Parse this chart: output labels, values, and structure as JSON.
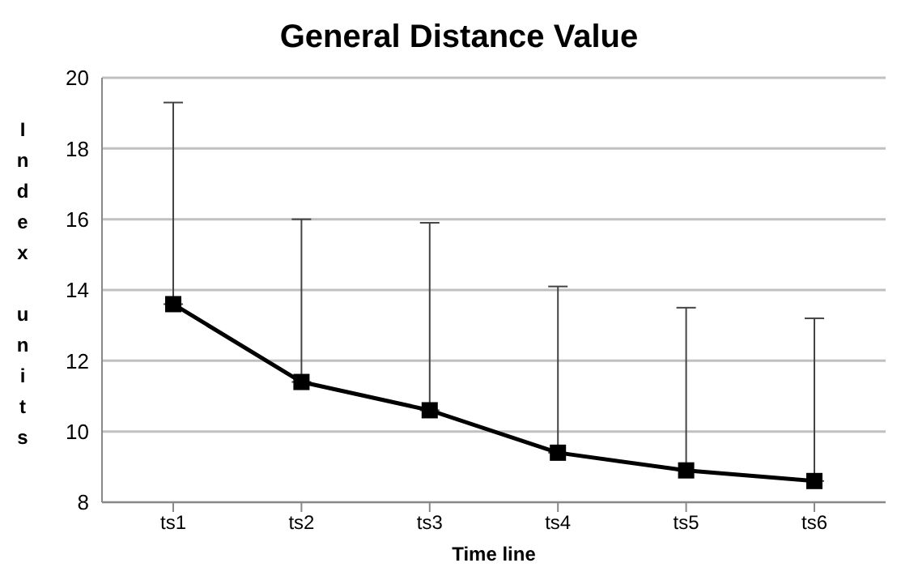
{
  "chart_data": {
    "type": "line",
    "title": "General Distance Value",
    "xlabel": "Time line",
    "ylabel": "Index units",
    "categories": [
      "ts1",
      "ts2",
      "ts3",
      "ts4",
      "ts5",
      "ts6"
    ],
    "series": [
      {
        "color": "#000000",
        "values": [
          13.6,
          11.4,
          10.6,
          9.4,
          8.9,
          8.6
        ],
        "errors": [
          [
            13.6,
            19.3
          ],
          [
            11.4,
            16.0
          ],
          [
            10.6,
            15.9
          ],
          [
            9.4,
            14.1
          ],
          [
            8.9,
            13.5
          ],
          [
            8.6,
            13.2
          ]
        ]
      }
    ],
    "ylim": [
      8,
      20
    ],
    "yticks": [
      8,
      10,
      12,
      14,
      16,
      18,
      20
    ],
    "grid": "y",
    "marker": "square",
    "line_style": "solid",
    "legend": false
  }
}
